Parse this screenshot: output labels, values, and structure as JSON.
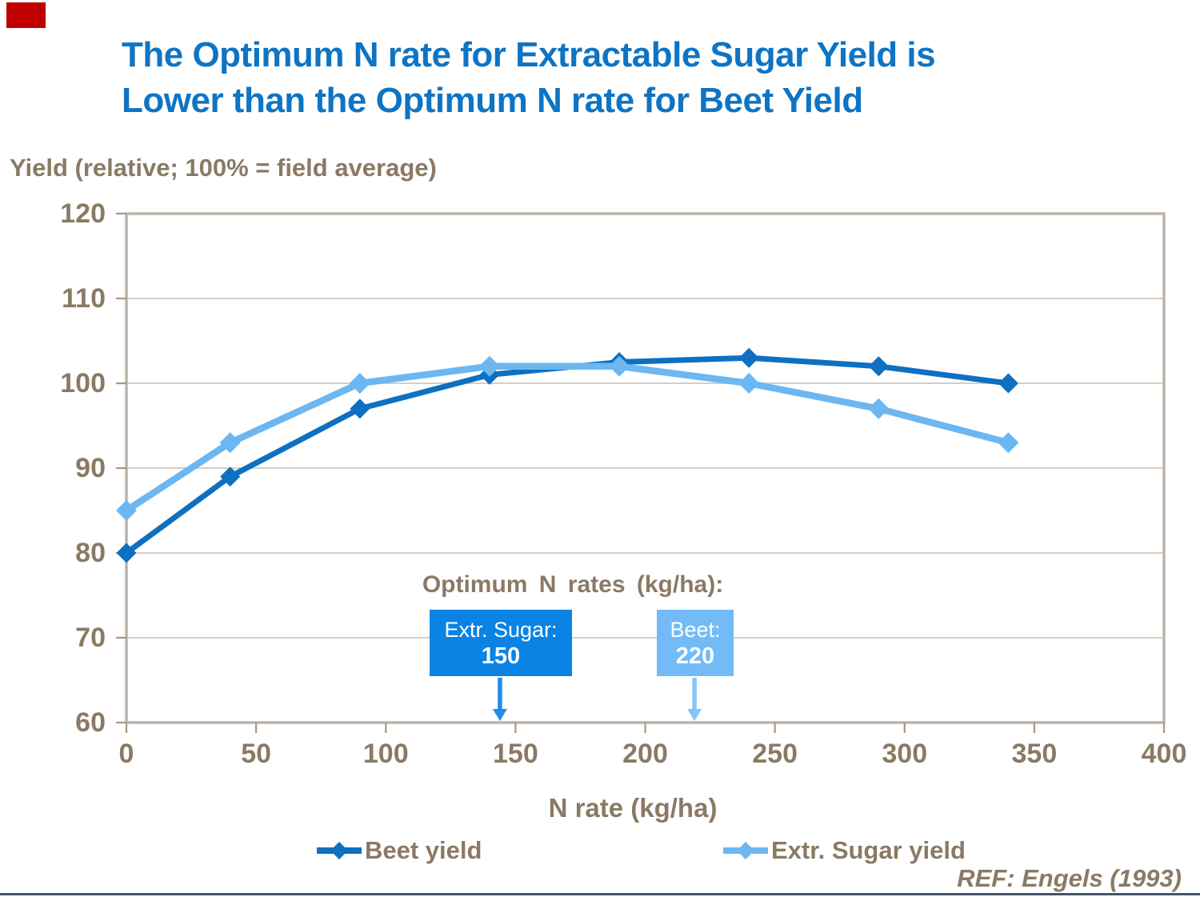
{
  "title": {
    "line1": "The Optimum N rate for Extractable Sugar Yield is",
    "line2": "Lower than the Optimum N rate for Beet Yield"
  },
  "ref_text": "REF: Engels (1993)",
  "annotation": {
    "title": "Optimum N rates (kg/ha):",
    "boxes": [
      {
        "label": "Extr. Sugar:",
        "value": "150",
        "box_color": "#0A83E4",
        "arrow_color": "#1F8DE8"
      },
      {
        "label": "Beet:",
        "value": "220",
        "box_color": "#72BBF8",
        "arrow_color": "#85C6FA"
      }
    ]
  },
  "legend": [
    {
      "label": "Beet yield",
      "color": "#0E70C0"
    },
    {
      "label": "Extr. Sugar yield",
      "color": "#6CB7F1"
    }
  ],
  "colors": {
    "title_blue": "#0E74C4",
    "text_brown": "#8A7A64",
    "axis_tan": "#BDB3A8",
    "gridline_tan": "#C7BEB2",
    "beet_line": "#0E70C0",
    "sugar_line": "#6CB7F1",
    "bottom_rule": "#44546A",
    "flag_red": "#C00000"
  },
  "chart_data": {
    "type": "line",
    "title": "The Optimum N rate for Extractable Sugar Yield is Lower than the Optimum N rate for Beet Yield",
    "xlabel": "N rate (kg/ha)",
    "ylabel": "Yield (relative; 100% = field average)",
    "x": [
      0,
      40,
      90,
      140,
      190,
      240,
      290,
      340
    ],
    "series": [
      {
        "name": "Beet yield",
        "color": "#0E70C0",
        "values": [
          80,
          89,
          97,
          101,
          102.5,
          103,
          102,
          100
        ]
      },
      {
        "name": "Extr. Sugar yield",
        "color": "#6CB7F1",
        "values": [
          85,
          93,
          100,
          102,
          102,
          100,
          97,
          93
        ]
      }
    ],
    "xlim": [
      0,
      400
    ],
    "ylim": [
      60,
      120
    ],
    "x_ticks": [
      0,
      50,
      100,
      150,
      200,
      250,
      300,
      350,
      400
    ],
    "y_ticks": [
      60,
      70,
      80,
      90,
      100,
      110,
      120
    ],
    "grid": true,
    "legend_position": "bottom",
    "annotations": {
      "heading": "Optimum N rates (kg/ha):",
      "optimum_extr_sugar_kg_ha": 150,
      "optimum_beet_kg_ha": 220
    }
  }
}
